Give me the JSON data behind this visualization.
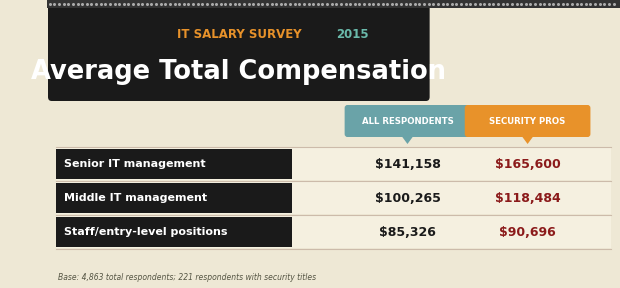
{
  "title_survey": "IT SALARY SURVEY ",
  "title_year": "2015",
  "title_main": "Average Total Compensation",
  "col1_header": "ALL RESPONDENTS",
  "col2_header": "SECURITY PROS",
  "rows": [
    {
      "label": "Senior IT management",
      "col1": "$141,158",
      "col2": "$165,600"
    },
    {
      "label": "Middle IT management",
      "col1": "$100,265",
      "col2": "$118,484"
    },
    {
      "label": "Staff/entry-level positions",
      "col1": "$85,326",
      "col2": "$90,696"
    }
  ],
  "footnote": "Base: 4,863 total respondents; 221 respondents with security titles",
  "bg_color": "#eee8d5",
  "header_bg": "#1a1a1a",
  "row_label_bg": "#1a1a1a",
  "row_label_color": "#ffffff",
  "col1_header_bg": "#6aa3a8",
  "col2_header_bg": "#e8922a",
  "col1_header_color": "#ffffff",
  "col2_header_color": "#ffffff",
  "col1_value_color": "#1a1a1a",
  "col2_value_color": "#8b1a1a",
  "survey_color": "#e8922a",
  "year_color": "#6abaab",
  "title_color": "#ffffff",
  "stripe_color": "#f5f0e0",
  "line_color": "#ccbbaa"
}
